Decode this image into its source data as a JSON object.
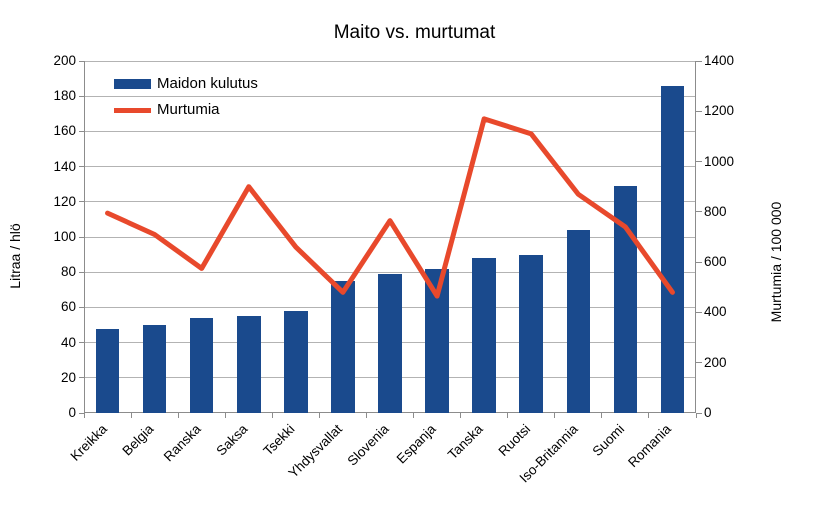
{
  "chart_data": {
    "type": "combo-bar-line",
    "title": "Maito vs. murtumat",
    "categories": [
      "Kreikka",
      "Belgia",
      "Ranska",
      "Saksa",
      "Tsekki",
      "Yhdysvallat",
      "Slovenia",
      "Espanja",
      "Tanska",
      "Ruotsi",
      "Iso-Britannia",
      "Suomi",
      "Romania"
    ],
    "series": [
      {
        "name": "Maidon kulutus",
        "type": "bar",
        "axis": "left",
        "values": [
          48,
          50,
          54,
          55,
          58,
          75,
          79,
          82,
          88,
          90,
          104,
          129,
          186
        ]
      },
      {
        "name": "Murtumia",
        "type": "line",
        "axis": "right",
        "values": [
          795,
          710,
          575,
          900,
          660,
          480,
          765,
          465,
          1170,
          1110,
          870,
          740,
          480
        ]
      }
    ],
    "left_axis": {
      "label": "Litraa / hlö",
      "min": 0,
      "max": 200,
      "step": 20
    },
    "right_axis": {
      "label": "Murtumia / 100 000",
      "min": 0,
      "max": 1400,
      "step": 200
    },
    "grid": "horizontal",
    "legend_position": "top-left-inside",
    "colors": {
      "bar": "#1a4a8d",
      "line": "#e8492c",
      "gridline": "#b3b3b3",
      "axis": "#8c8c8c",
      "text": "#000000",
      "background": "#ffffff"
    }
  }
}
